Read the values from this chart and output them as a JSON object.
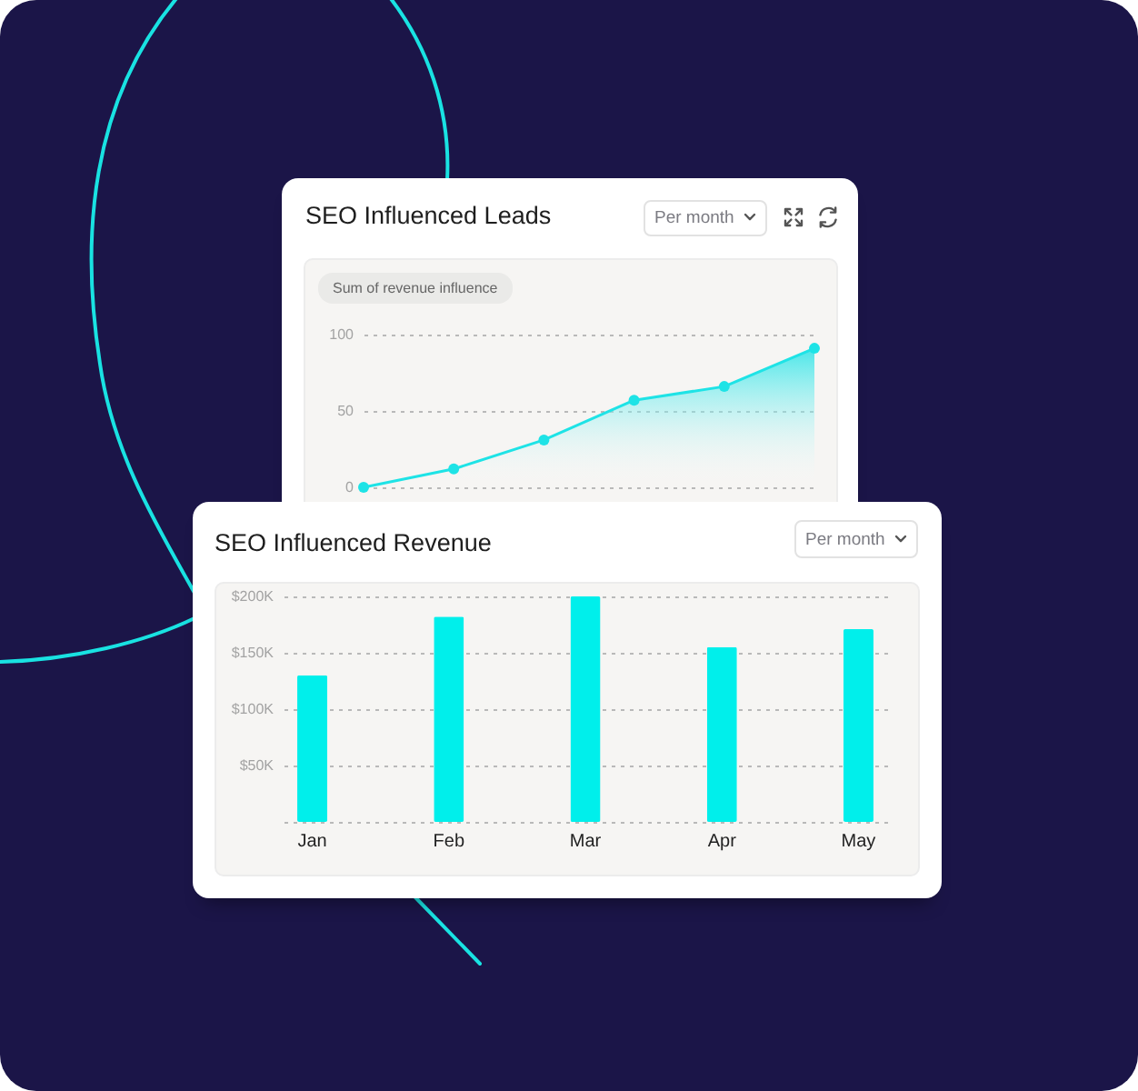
{
  "chart_data": [
    {
      "type": "area",
      "title": "SEO Influenced Leads",
      "ylabel": "Sum of revenue influence",
      "annotations": [
        "Per month"
      ],
      "categories": [
        null,
        null,
        null,
        null,
        null,
        null
      ],
      "values": [
        0,
        12,
        31,
        57,
        66,
        91
      ],
      "color": "#1ee3e6",
      "ylim": [
        0,
        100
      ],
      "yticks": [
        0,
        50,
        100
      ],
      "grid": "y",
      "marker": "circle"
    },
    {
      "type": "bar",
      "title": "SEO Influenced Revenue",
      "annotations": [
        "Per month"
      ],
      "categories": [
        "Jan",
        "Feb",
        "Mar",
        "Apr",
        "May"
      ],
      "values": [
        130000,
        182000,
        200000,
        155000,
        171000
      ],
      "color": "#00efeb",
      "ylim": [
        0,
        200000
      ],
      "yticks": [
        {
          "value": 0,
          "label": null
        },
        {
          "value": 50000,
          "label": "$50K"
        },
        {
          "value": 100000,
          "label": "$100K"
        },
        {
          "value": 150000,
          "label": "$150K"
        },
        {
          "value": 200000,
          "label": "$200K"
        }
      ],
      "grid": "y"
    }
  ]
}
